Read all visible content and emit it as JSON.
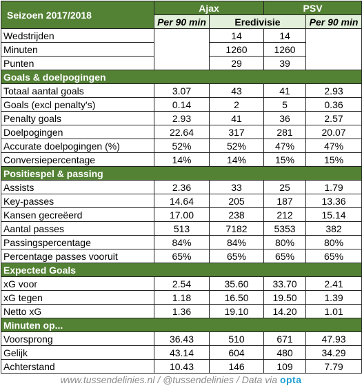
{
  "header": {
    "title": "Seizoen 2017/2018",
    "team_a": "Ajax",
    "team_b": "PSV",
    "sub_a": "Per 90 min",
    "sub_mid": "Eredivisie",
    "sub_b": "Per 90 min"
  },
  "basic_rows": [
    {
      "label": "Wedstrijden",
      "a_total": "14",
      "b_total": "14"
    },
    {
      "label": "Minuten",
      "a_total": "1260",
      "b_total": "1260"
    },
    {
      "label": "Punten",
      "a_total": "29",
      "b_total": "39"
    }
  ],
  "sections": [
    {
      "title": "Goals & doelpogingen",
      "rows": [
        {
          "label": "Totaal aantal goals",
          "a90": "3.07",
          "a_total": "43",
          "b_total": "41",
          "b90": "2.93"
        },
        {
          "label": "Goals (excl penalty's)",
          "a90": "0.14",
          "a_total": "2",
          "b_total": "5",
          "b90": "0.36"
        },
        {
          "label": "Penalty goals",
          "a90": "2.93",
          "a_total": "41",
          "b_total": "36",
          "b90": "2.57"
        },
        {
          "label": "Doelpogingen",
          "a90": "22.64",
          "a_total": "317",
          "b_total": "281",
          "b90": "20.07"
        },
        {
          "label": "Accurate doelpogingen (%)",
          "a90": "52%",
          "a_total": "52%",
          "b_total": "47%",
          "b90": "47%"
        },
        {
          "label": "Conversiepercentage",
          "a90": "14%",
          "a_total": "14%",
          "b_total": "15%",
          "b90": "15%"
        }
      ]
    },
    {
      "title": "Positiespel & passing",
      "rows": [
        {
          "label": "Assists",
          "a90": "2.36",
          "a_total": "33",
          "b_total": "25",
          "b90": "1.79"
        },
        {
          "label": "Key-passes",
          "a90": "14.64",
          "a_total": "205",
          "b_total": "187",
          "b90": "13.36"
        },
        {
          "label": "Kansen gecreëerd",
          "a90": "17.00",
          "a_total": "238",
          "b_total": "212",
          "b90": "15.14"
        },
        {
          "label": "Aantal passes",
          "a90": "513",
          "a_total": "7182",
          "b_total": "5353",
          "b90": "382"
        },
        {
          "label": "Passingspercentage",
          "a90": "84%",
          "a_total": "84%",
          "b_total": "80%",
          "b90": "80%"
        },
        {
          "label": "Percentage passes vooruit",
          "a90": "65%",
          "a_total": "65%",
          "b_total": "65%",
          "b90": "65%"
        }
      ]
    },
    {
      "title": "Expected Goals",
      "rows": [
        {
          "label": "xG voor",
          "a90": "2.54",
          "a_total": "35.60",
          "b_total": "33.70",
          "b90": "2.41"
        },
        {
          "label": "xG tegen",
          "a90": "1.18",
          "a_total": "16.50",
          "b_total": "19.50",
          "b90": "1.39"
        },
        {
          "label": "Netto xG",
          "a90": "1.36",
          "a_total": "19.10",
          "b_total": "14.20",
          "b90": "1.01"
        }
      ]
    },
    {
      "title": "Minuten op...",
      "rows": [
        {
          "label": "Voorsprong",
          "a90": "36.43",
          "a_total": "510",
          "b_total": "671",
          "b90": "47.93"
        },
        {
          "label": "Gelijk",
          "a90": "43.14",
          "a_total": "604",
          "b_total": "480",
          "b90": "34.29"
        },
        {
          "label": "Achterstand",
          "a90": "10.43",
          "a_total": "146",
          "b_total": "109",
          "b90": "7.79"
        }
      ]
    }
  ],
  "footer": {
    "text": "www.tussendelinies.nl / @tussendelinies / Data via",
    "logo": "opta"
  }
}
